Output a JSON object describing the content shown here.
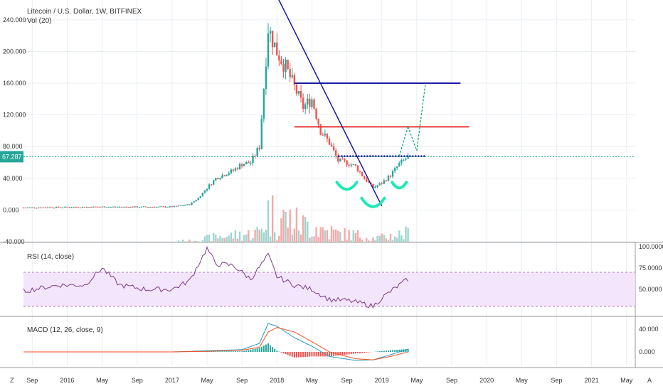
{
  "chart_data": {
    "type": "candlestick",
    "title": "Litecoin / U.S. Dollar, 1W, BITFINEX",
    "volume_label": "Vol (20)",
    "last_price_label": "67.287",
    "last_price": 67.287,
    "y_ticks": [
      "-40.000",
      "0.000",
      "40.000",
      "80.000",
      "120.000",
      "160.000",
      "200.000",
      "240.000"
    ],
    "ylim": [
      -40,
      265
    ],
    "x_ticks": [
      "Sep",
      "2016",
      "May",
      "Sep",
      "2017",
      "May",
      "Sep",
      "2018",
      "May",
      "Sep",
      "2019",
      "May",
      "Sep",
      "2020",
      "May",
      "Sep",
      "2021",
      "May"
    ],
    "corner_left": "Z",
    "corner_right": "A",
    "colors": {
      "up": "#26a69a",
      "down": "#ef5350",
      "rsi": "#7e3a8a",
      "macd": "#2c99c7",
      "signal": "#f4511e",
      "blue_line": "#1a1aa0",
      "red_line": "#e53935",
      "green_marks": "#1de9b6",
      "price_line": "#26a69a"
    },
    "price_series": [
      [
        "2015-08",
        3
      ],
      [
        "2016-01",
        3.5
      ],
      [
        "2016-05",
        4
      ],
      [
        "2016-09",
        3.8
      ],
      [
        "2017-01",
        4
      ],
      [
        "2017-03",
        7
      ],
      [
        "2017-04",
        15
      ],
      [
        "2017-05",
        28
      ],
      [
        "2017-06",
        40
      ],
      [
        "2017-07",
        45
      ],
      [
        "2017-08",
        50
      ],
      [
        "2017-09",
        58
      ],
      [
        "2017-10",
        60
      ],
      [
        "2017-11",
        80
      ],
      [
        "2017-12",
        230
      ],
      [
        "2018-01",
        200
      ],
      [
        "2018-02",
        180
      ],
      [
        "2018-03",
        155
      ],
      [
        "2018-04",
        130
      ],
      [
        "2018-05",
        140
      ],
      [
        "2018-06",
        100
      ],
      [
        "2018-07",
        85
      ],
      [
        "2018-08",
        62
      ],
      [
        "2018-09",
        60
      ],
      [
        "2018-10",
        55
      ],
      [
        "2018-11",
        40
      ],
      [
        "2018-12",
        28
      ],
      [
        "2019-01",
        34
      ],
      [
        "2019-02",
        44
      ],
      [
        "2019-03",
        58
      ],
      [
        "2019-04",
        67
      ]
    ],
    "annotations": {
      "resistance_blue": 160,
      "resistance_red": 105,
      "neckline": 68,
      "projection_targets": [
        105,
        160
      ]
    },
    "rsi": {
      "label": "RSI (14, close)",
      "ticks": [
        "100.0000",
        "75.0000",
        "50.0000"
      ],
      "bands": [
        30,
        70
      ],
      "series": [
        [
          "2015-08",
          48
        ],
        [
          "2015-12",
          55
        ],
        [
          "2016-03",
          55
        ],
        [
          "2016-05",
          75
        ],
        [
          "2016-07",
          55
        ],
        [
          "2016-10",
          50
        ],
        [
          "2017-01",
          50
        ],
        [
          "2017-03",
          60
        ],
        [
          "2017-05",
          98
        ],
        [
          "2017-06",
          80
        ],
        [
          "2017-08",
          78
        ],
        [
          "2017-10",
          62
        ],
        [
          "2017-12",
          90
        ],
        [
          "2018-01",
          65
        ],
        [
          "2018-03",
          55
        ],
        [
          "2018-05",
          50
        ],
        [
          "2018-07",
          38
        ],
        [
          "2018-09",
          37
        ],
        [
          "2018-11",
          33
        ],
        [
          "2018-12",
          30
        ],
        [
          "2019-01",
          40
        ],
        [
          "2019-03",
          55
        ],
        [
          "2019-04",
          62
        ]
      ]
    },
    "macd": {
      "label": "MACD (12, 26, close, 9)",
      "ticks": [
        "40.000",
        "0.000"
      ],
      "macd_series": [
        [
          "2015-08",
          0
        ],
        [
          "2017-01",
          0
        ],
        [
          "2017-05",
          2
        ],
        [
          "2017-09",
          4
        ],
        [
          "2017-11",
          15
        ],
        [
          "2017-12",
          50
        ],
        [
          "2018-01",
          45
        ],
        [
          "2018-03",
          25
        ],
        [
          "2018-05",
          10
        ],
        [
          "2018-07",
          -8
        ],
        [
          "2018-10",
          -15
        ],
        [
          "2018-12",
          -14
        ],
        [
          "2019-02",
          -5
        ],
        [
          "2019-04",
          5
        ]
      ],
      "signal_series": [
        [
          "2015-08",
          0
        ],
        [
          "2017-01",
          0
        ],
        [
          "2017-05",
          1
        ],
        [
          "2017-09",
          3
        ],
        [
          "2017-11",
          8
        ],
        [
          "2017-12",
          35
        ],
        [
          "2018-01",
          43
        ],
        [
          "2018-03",
          35
        ],
        [
          "2018-05",
          18
        ],
        [
          "2018-07",
          0
        ],
        [
          "2018-10",
          -12
        ],
        [
          "2018-12",
          -14
        ],
        [
          "2019-02",
          -8
        ],
        [
          "2019-04",
          0
        ]
      ]
    }
  }
}
